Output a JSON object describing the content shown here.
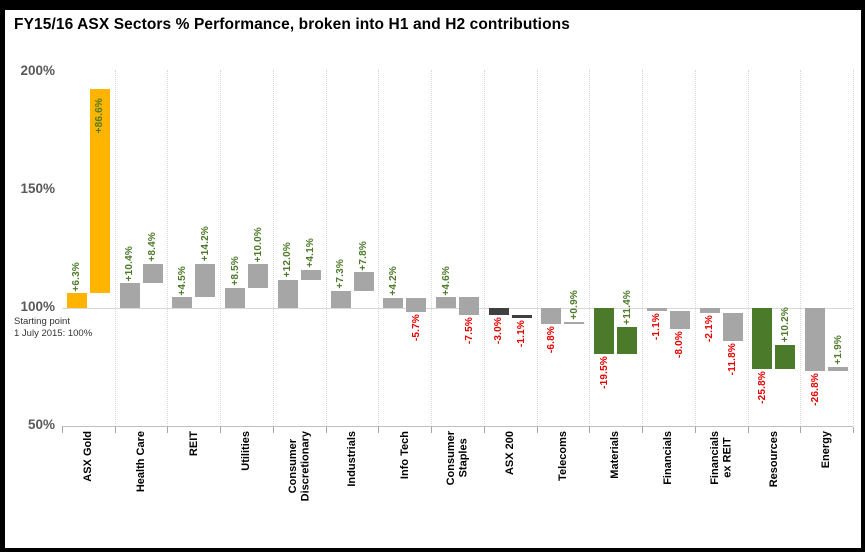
{
  "chart_data": {
    "type": "bar",
    "subtype": "waterfall-by-category",
    "title": "FY15/16 ASX Sectors % Performance, broken into H1 and H2 contributions",
    "ytick_labels": [
      "200%",
      "150%",
      "100%",
      "50%"
    ],
    "ylim": [
      50,
      205
    ],
    "baseline_pct": 100,
    "annotation_lines": [
      "Starting point",
      "1 July 2015: 100%"
    ],
    "series_names": [
      "H1",
      "H2"
    ],
    "grid": {
      "vertical_dotted": true,
      "h100_line": true
    },
    "legend": "none",
    "categories": [
      {
        "label": "ASX Gold",
        "h1": 6.3,
        "h2": 86.6,
        "color": "gold",
        "h2_label_inside": true
      },
      {
        "label": "Health Care",
        "h1": 10.4,
        "h2": 8.4,
        "color": "gray"
      },
      {
        "label": "REIT",
        "h1": 4.5,
        "h2": 14.2,
        "color": "gray"
      },
      {
        "label": "Utilities",
        "h1": 8.5,
        "h2": 10.0,
        "color": "gray"
      },
      {
        "label": "Consumer\nDiscretionary",
        "h1": 12.0,
        "h2": 4.1,
        "color": "gray"
      },
      {
        "label": "Industrials",
        "h1": 7.3,
        "h2": 7.8,
        "color": "gray"
      },
      {
        "label": "Info Tech",
        "h1": 4.2,
        "h2": -5.7,
        "color": "gray"
      },
      {
        "label": "Consumer\nStaples",
        "h1": 4.6,
        "h2": -7.5,
        "color": "gray"
      },
      {
        "label": "ASX 200",
        "h1": -3.0,
        "h2": -1.1,
        "color": "dark"
      },
      {
        "label": "Telecoms",
        "h1": -6.8,
        "h2": 0.9,
        "color": "gray"
      },
      {
        "label": "Materials",
        "h1": -19.5,
        "h2": 11.4,
        "color": "green"
      },
      {
        "label": "Financials",
        "h1": -1.1,
        "h2": -8.0,
        "color": "gray"
      },
      {
        "label": "Financials\nex REIT",
        "h1": -2.1,
        "h2": -11.8,
        "color": "gray"
      },
      {
        "label": "Resources",
        "h1": -25.8,
        "h2": 10.2,
        "color": "green"
      },
      {
        "label": "Energy",
        "h1": -26.8,
        "h2": 1.9,
        "color": "gray"
      }
    ],
    "colors": {
      "gold": "#FFB400",
      "gray": "#A6A6A6",
      "dark": "#3F3F3F",
      "green": "#4C7A2B",
      "positive_label": "#4E7B2A",
      "negative_label": "#E60000",
      "axis_line": "#BFBFBF",
      "gridline": "#D9D9D9",
      "ytick_text": "#595959"
    }
  }
}
